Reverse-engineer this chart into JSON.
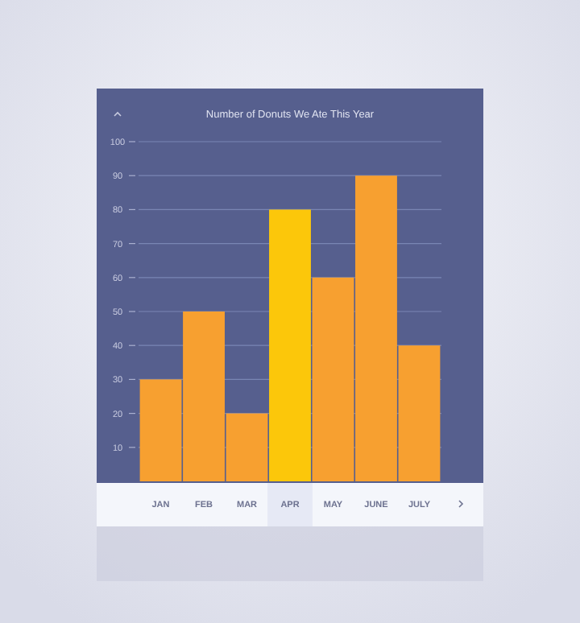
{
  "chart_data": {
    "type": "bar",
    "title": "Number of Donuts We Ate This Year",
    "categories": [
      "JAN",
      "FEB",
      "MAR",
      "APR",
      "MAY",
      "JUNE",
      "JULY"
    ],
    "values": [
      30,
      50,
      20,
      80,
      60,
      90,
      40
    ],
    "colors": [
      "#f7a030",
      "#f7a030",
      "#f7a030",
      "#fcc70a",
      "#f7a030",
      "#f7a030",
      "#f7a030"
    ],
    "ylim": [
      0,
      100
    ],
    "yticks": [
      10,
      20,
      30,
      40,
      50,
      60,
      70,
      80,
      90,
      100
    ],
    "grid": "y"
  }
}
